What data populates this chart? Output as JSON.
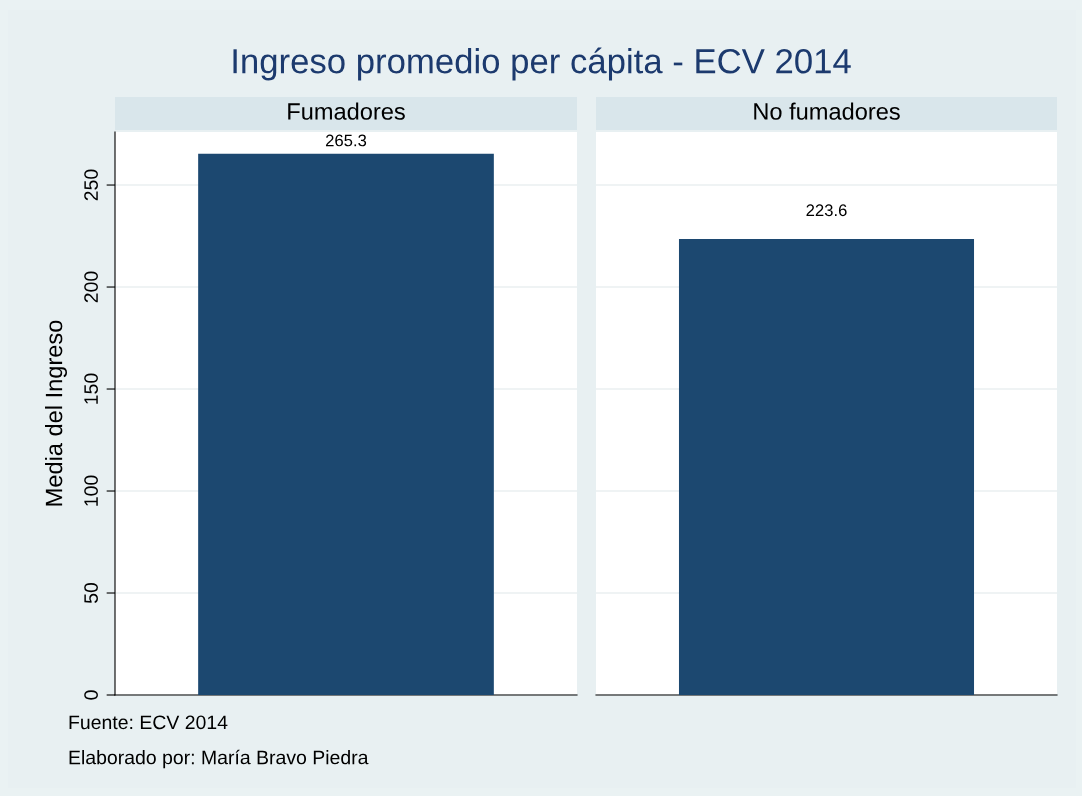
{
  "chart_data": [
    {
      "type": "bar",
      "title": "Ingreso promedio per cápita - ECV 2014",
      "ylabel": "Media del Ingreso",
      "categories": [
        "Fumadores"
      ],
      "values": [
        265.3
      ],
      "color": "#1c4870",
      "data_labels": true,
      "ylim": [
        0,
        276
      ],
      "yticks": [
        0,
        50,
        100,
        150,
        200,
        250
      ],
      "grid": "y",
      "tick_labels": "y",
      "annotations": [
        "Fuente: ECV 2014",
        "Elaborado por: María Bravo Piedra"
      ]
    },
    {
      "type": "bar",
      "categories": [
        "No fumadores"
      ],
      "values": [
        223.6
      ],
      "color": "#1c4870",
      "data_labels": true,
      "ylim": [
        0,
        276
      ],
      "yticks": [
        0,
        50,
        100,
        150,
        200,
        250
      ],
      "grid": "y",
      "tick_labels": false
    }
  ]
}
